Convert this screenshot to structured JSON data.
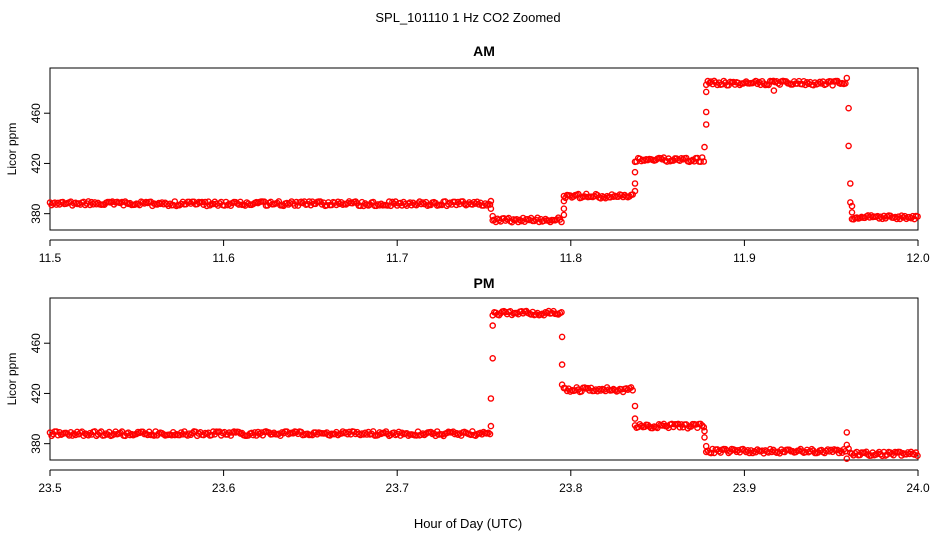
{
  "figure": {
    "title": "SPL_101110  1 Hz CO2 Zoomed",
    "xlabel": "Hour of Day (UTC)",
    "marker_color": "#ff0000"
  },
  "chart_data": [
    {
      "type": "scatter",
      "title": "AM",
      "xlabel": "Hour of Day (UTC)",
      "ylabel": "Licor ppm",
      "xlim": [
        11.5,
        12.0
      ],
      "ylim": [
        367,
        496
      ],
      "xticks": [
        11.5,
        11.6,
        11.7,
        11.8,
        11.9,
        12.0
      ],
      "xtick_labels": [
        "11.5",
        "11.6",
        "11.7",
        "11.8",
        "11.9",
        "12.0"
      ],
      "yticks": [
        380,
        420,
        460
      ],
      "ytick_labels": [
        "380",
        "420",
        "460"
      ],
      "grid": false,
      "series": [
        {
          "color": "#ff0000",
          "marker": "open-circle",
          "segments": [
            {
              "x_start": 11.5,
              "x_end": 11.754,
              "y": 388
            },
            {
              "x_start": 11.755,
              "x_end": 11.795,
              "y": 375
            },
            {
              "x_start": 11.796,
              "x_end": 11.836,
              "y": 394
            },
            {
              "x_start": 11.837,
              "x_end": 11.877,
              "y": 423
            },
            {
              "x_start": 11.878,
              "x_end": 11.959,
              "y": 484
            },
            {
              "x_start": 11.962,
              "x_end": 12.0,
              "y": 377
            }
          ],
          "transition_points": [
            {
              "x": 11.754,
              "y": 390
            },
            {
              "x": 11.754,
              "y": 384
            },
            {
              "x": 11.755,
              "y": 378
            },
            {
              "x": 11.796,
              "y": 379
            },
            {
              "x": 11.796,
              "y": 384
            },
            {
              "x": 11.796,
              "y": 390
            },
            {
              "x": 11.837,
              "y": 398
            },
            {
              "x": 11.837,
              "y": 404
            },
            {
              "x": 11.837,
              "y": 413
            },
            {
              "x": 11.877,
              "y": 433
            },
            {
              "x": 11.878,
              "y": 451
            },
            {
              "x": 11.878,
              "y": 461
            },
            {
              "x": 11.878,
              "y": 477
            },
            {
              "x": 11.917,
              "y": 478
            },
            {
              "x": 11.959,
              "y": 488
            },
            {
              "x": 11.96,
              "y": 464
            },
            {
              "x": 11.96,
              "y": 434
            },
            {
              "x": 11.961,
              "y": 404
            },
            {
              "x": 11.961,
              "y": 389
            },
            {
              "x": 11.962,
              "y": 386
            },
            {
              "x": 11.962,
              "y": 381
            }
          ]
        }
      ]
    },
    {
      "type": "scatter",
      "title": "PM",
      "xlabel": "Hour of Day (UTC)",
      "ylabel": "Licor ppm",
      "xlim": [
        23.5,
        24.0
      ],
      "ylim": [
        367,
        496
      ],
      "xticks": [
        23.5,
        23.6,
        23.7,
        23.8,
        23.9,
        24.0
      ],
      "xtick_labels": [
        "23.5",
        "23.6",
        "23.7",
        "23.8",
        "23.9",
        "24.0"
      ],
      "yticks": [
        380,
        420,
        460
      ],
      "ytick_labels": [
        "380",
        "420",
        "460"
      ],
      "grid": false,
      "series": [
        {
          "color": "#ff0000",
          "marker": "open-circle",
          "segments": [
            {
              "x_start": 23.5,
              "x_end": 23.754,
              "y": 388
            },
            {
              "x_start": 23.755,
              "x_end": 23.795,
              "y": 484
            },
            {
              "x_start": 23.796,
              "x_end": 23.836,
              "y": 423
            },
            {
              "x_start": 23.837,
              "x_end": 23.877,
              "y": 394
            },
            {
              "x_start": 23.878,
              "x_end": 23.959,
              "y": 374
            },
            {
              "x_start": 23.961,
              "x_end": 24.0,
              "y": 372
            }
          ],
          "transition_points": [
            {
              "x": 23.754,
              "y": 394
            },
            {
              "x": 23.754,
              "y": 416
            },
            {
              "x": 23.755,
              "y": 448
            },
            {
              "x": 23.755,
              "y": 474
            },
            {
              "x": 23.795,
              "y": 465
            },
            {
              "x": 23.795,
              "y": 443
            },
            {
              "x": 23.795,
              "y": 427
            },
            {
              "x": 23.837,
              "y": 410
            },
            {
              "x": 23.837,
              "y": 400
            },
            {
              "x": 23.877,
              "y": 390
            },
            {
              "x": 23.877,
              "y": 385
            },
            {
              "x": 23.878,
              "y": 378
            },
            {
              "x": 23.959,
              "y": 389
            },
            {
              "x": 23.959,
              "y": 379
            },
            {
              "x": 23.959,
              "y": 368
            },
            {
              "x": 23.96,
              "y": 376
            }
          ]
        }
      ]
    }
  ]
}
